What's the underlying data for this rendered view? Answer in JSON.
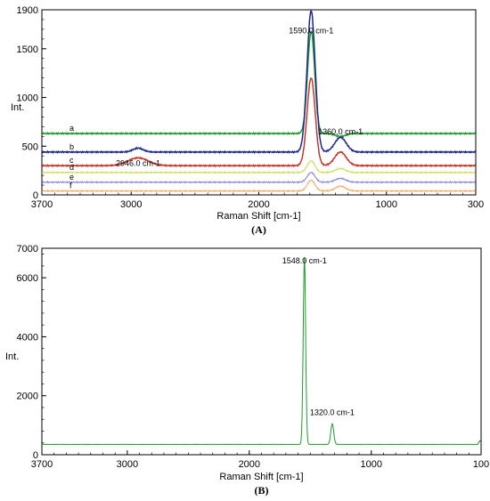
{
  "chart_data": [
    {
      "panel_label": "(A)",
      "type": "line",
      "xlabel": "Raman Shift [cm-1]",
      "ylabel": "Int.",
      "xlim": [
        3700,
        300
      ],
      "ylim": [
        0,
        1900
      ],
      "x_reversed": true,
      "xticks": [
        3700,
        3000,
        2000,
        1000,
        300
      ],
      "yticks": [
        0,
        500,
        1000,
        1500,
        1900
      ],
      "grid": false,
      "series": [
        {
          "name": "a",
          "color": "#1f9a2a",
          "baseline": 630,
          "peaks": [
            {
              "x": 1590,
              "height": 1050,
              "width": 28
            },
            {
              "x": 1360,
              "height": -30,
              "width": 40
            }
          ]
        },
        {
          "name": "b",
          "color": "#1b2a8c",
          "baseline": 440,
          "peaks": [
            {
              "x": 1590,
              "height": 1450,
              "width": 32
            },
            {
              "x": 1360,
              "height": 150,
              "width": 45
            },
            {
              "x": 2946,
              "height": 40,
              "width": 40
            }
          ]
        },
        {
          "name": "c",
          "color": "#c0392b",
          "baseline": 300,
          "peaks": [
            {
              "x": 1590,
              "height": 900,
              "width": 32
            },
            {
              "x": 1360,
              "height": 140,
              "width": 45
            },
            {
              "x": 2946,
              "height": 80,
              "width": 80
            }
          ]
        },
        {
          "name": "d",
          "color": "#c8d94a",
          "baseline": 230,
          "peaks": [
            {
              "x": 1590,
              "height": 120,
              "width": 30
            },
            {
              "x": 1360,
              "height": 40,
              "width": 40
            }
          ]
        },
        {
          "name": "e",
          "color": "#7a7ad8",
          "baseline": 130,
          "peaks": [
            {
              "x": 1590,
              "height": 100,
              "width": 30
            },
            {
              "x": 1360,
              "height": 40,
              "width": 40
            }
          ]
        },
        {
          "name": "f",
          "color": "#f0a35a",
          "baseline": 40,
          "peaks": [
            {
              "x": 1590,
              "height": 110,
              "width": 30
            },
            {
              "x": 1360,
              "height": 50,
              "width": 40
            }
          ]
        }
      ],
      "annotations": [
        {
          "text": "1590.0 cm-1",
          "x": 1590,
          "y": 1660
        },
        {
          "text": "1360.0 cm-1",
          "x": 1360,
          "y": 620
        },
        {
          "text": "2946.0 cm-1",
          "x": 2946,
          "y": 295
        }
      ]
    },
    {
      "panel_label": "(B)",
      "type": "line",
      "xlabel": "Raman Shift [cm-1]",
      "ylabel": "Int.",
      "xlim": [
        3700,
        100
      ],
      "ylim": [
        0,
        7000
      ],
      "x_reversed": true,
      "xticks": [
        3700,
        3000,
        2000,
        1000,
        100
      ],
      "yticks": [
        0,
        2000,
        4000,
        6000,
        7000
      ],
      "grid": false,
      "series": [
        {
          "name": "",
          "color": "#1f9a2a",
          "baseline": 350,
          "peaks": [
            {
              "x": 1548,
              "height": 6350,
              "width": 10
            },
            {
              "x": 1320,
              "height": 700,
              "width": 12
            },
            {
              "x": 110,
              "height": 120,
              "width": 8
            }
          ]
        }
      ],
      "annotations": [
        {
          "text": "1548.0 cm-1",
          "x": 1548,
          "y": 6480
        },
        {
          "text": "1320.0 cm-1",
          "x": 1320,
          "y": 1340
        }
      ]
    }
  ]
}
